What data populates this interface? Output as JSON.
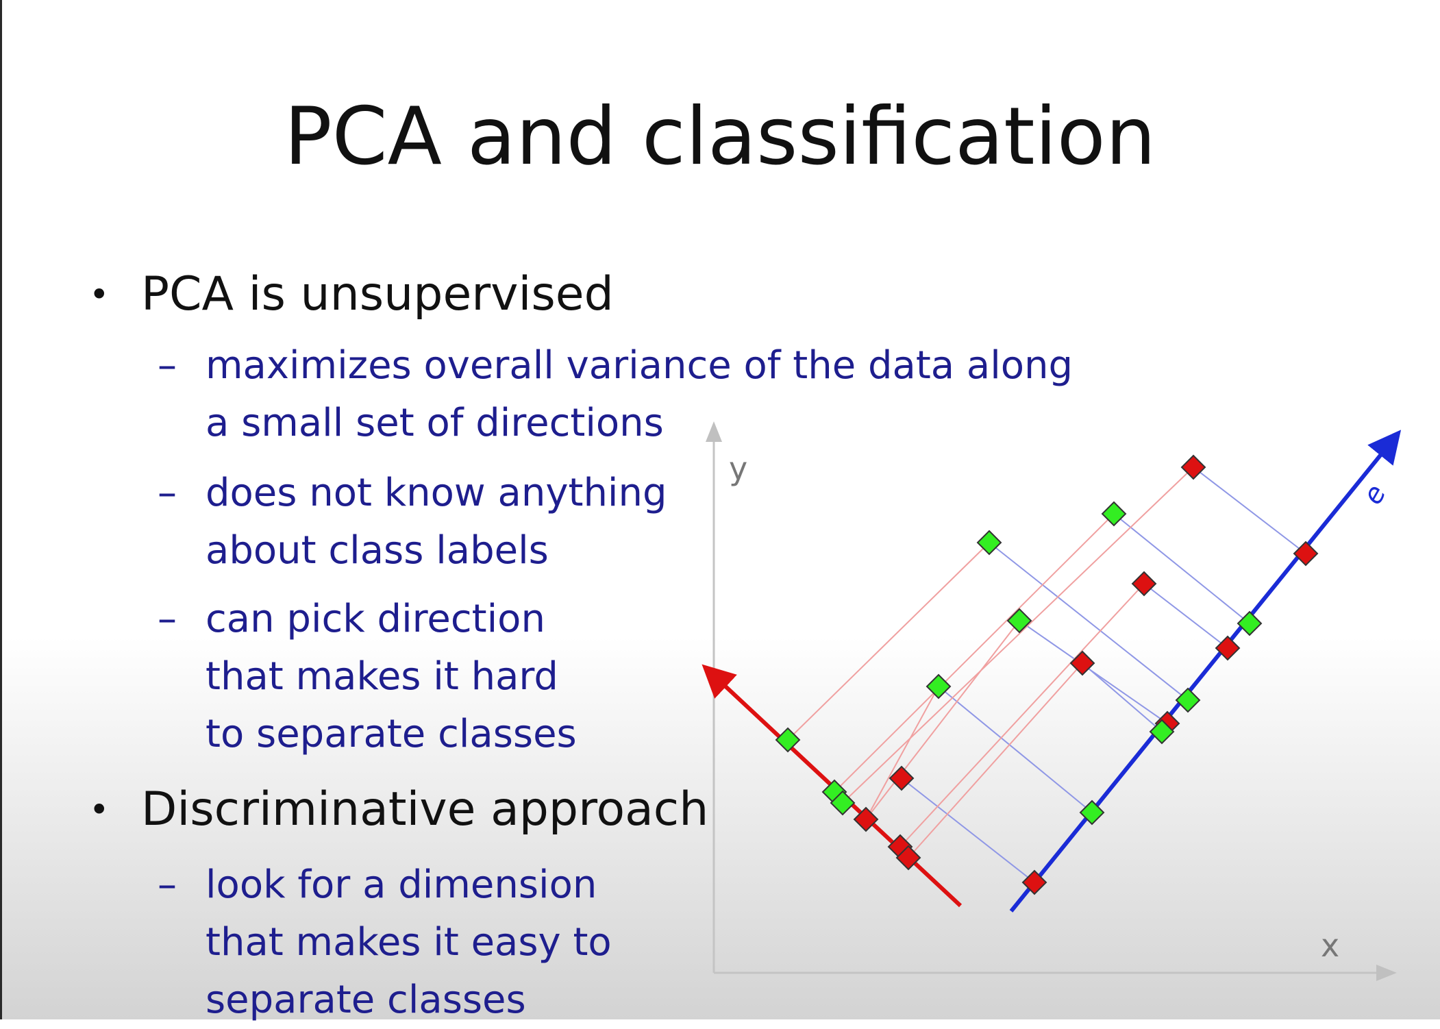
{
  "slide": {
    "title": "PCA and classification",
    "bullets": [
      {
        "text": "PCA is unsupervised",
        "subs": [
          [
            "maximizes overall variance of the data along",
            "a small set of directions"
          ],
          [
            "does not know anything",
            "about class labels"
          ],
          [
            "can pick direction",
            "that makes it hard",
            "to separate classes"
          ]
        ]
      },
      {
        "text": "Discriminative approach",
        "subs": [
          [
            "look for a dimension",
            "that makes it easy to",
            "separate classes"
          ]
        ]
      }
    ]
  },
  "diagram": {
    "x_axis_label": "x",
    "y_axis_label": "y",
    "direction_label": "e",
    "colors": {
      "class_a": "#dd1111",
      "class_b": "#33ee22",
      "direction_e": "#1a2bd6",
      "other_direction": "#dd1111",
      "axes": "#bbbbbb"
    }
  }
}
